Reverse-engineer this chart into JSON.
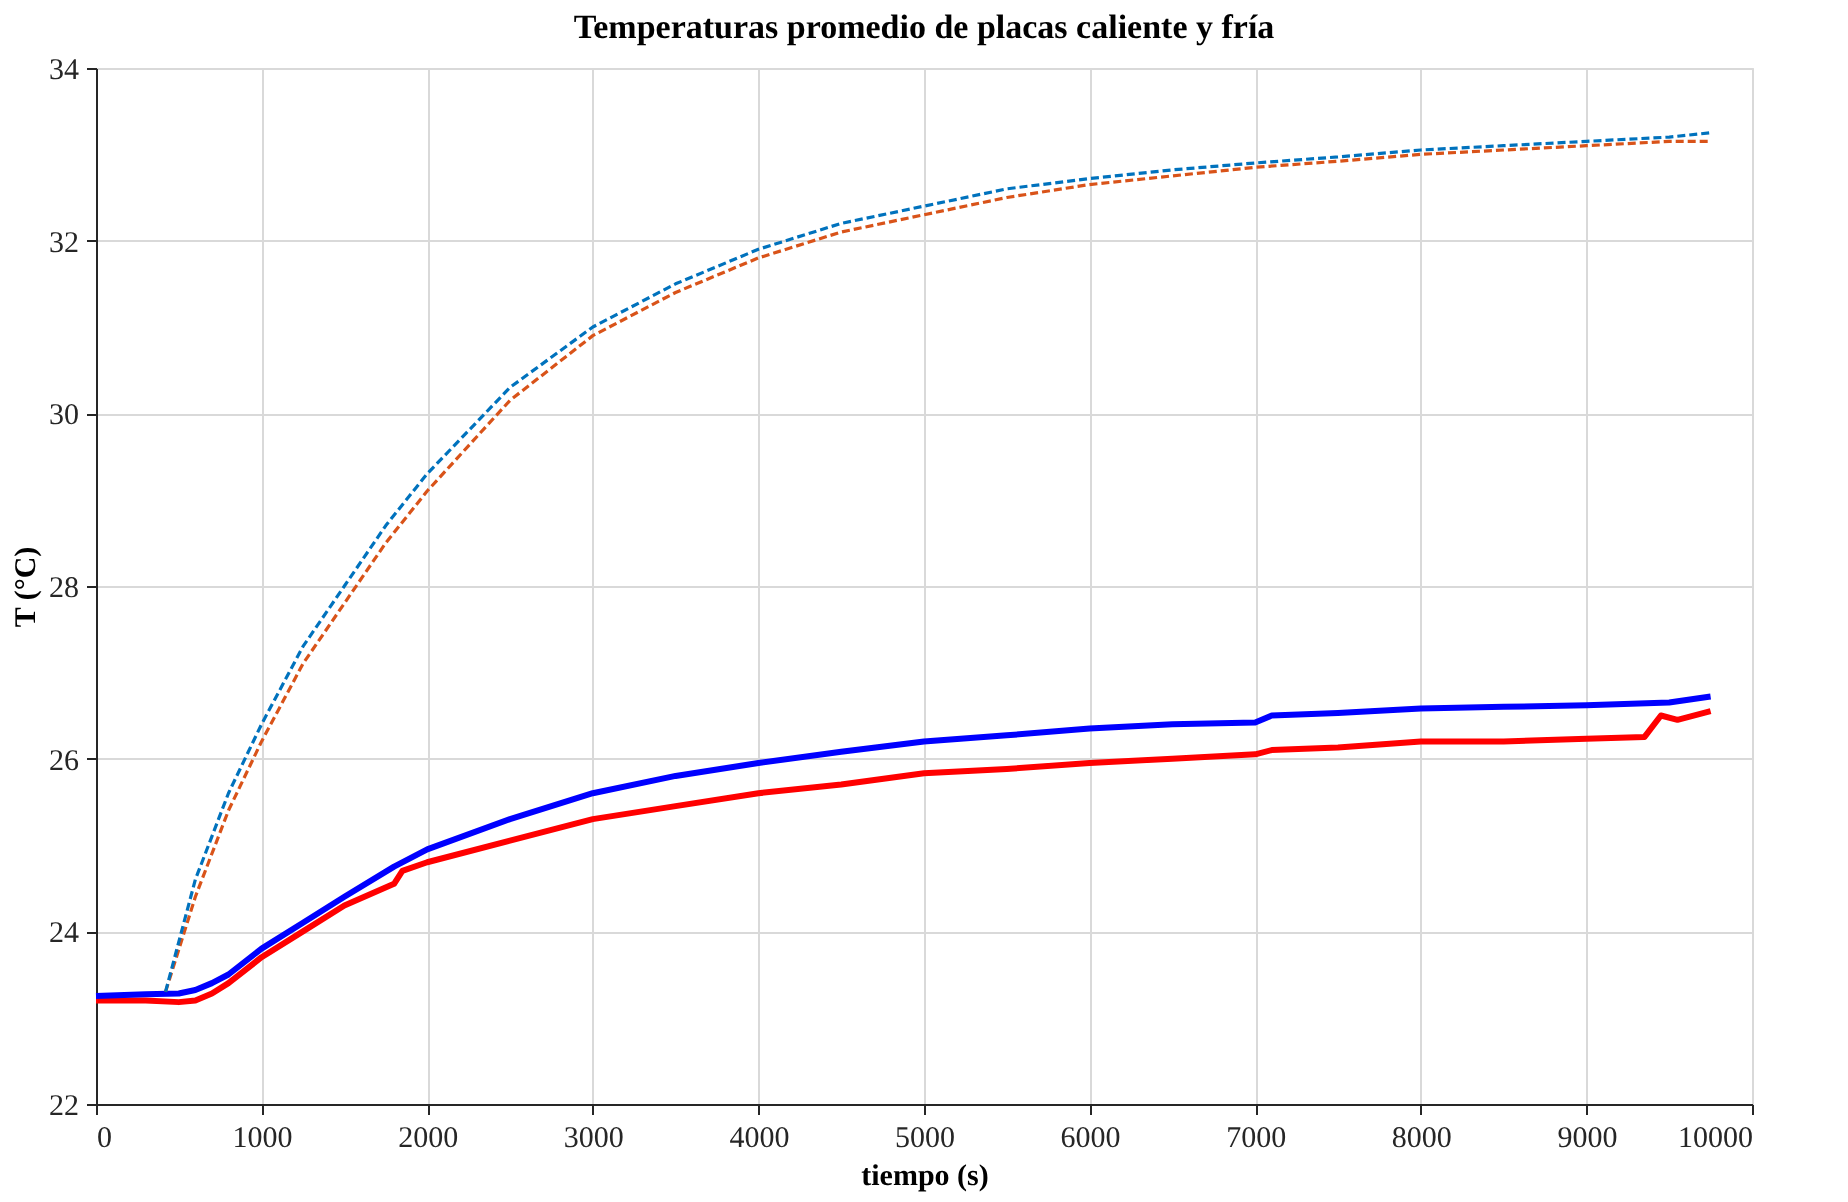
{
  "chart_data": {
    "type": "line",
    "title": "Temperaturas promedio de placas caliente y fría",
    "xlabel": "tiempo (s)",
    "ylabel": "T (°C)",
    "xlim": [
      0,
      10000
    ],
    "xticks": [
      0,
      1000,
      2000,
      3000,
      4000,
      5000,
      6000,
      7000,
      8000,
      9000,
      10000
    ],
    "ylim": [
      22,
      34
    ],
    "yticks": [
      22,
      24,
      26,
      28,
      30,
      32,
      34
    ],
    "grid": true,
    "marker": "none",
    "series": [
      {
        "color": "#0072bd",
        "line_style": "dashed",
        "x": [
          420,
          600,
          800,
          1000,
          1250,
          1500,
          1750,
          2000,
          2500,
          3000,
          3500,
          4000,
          4500,
          5000,
          5500,
          6000,
          6500,
          7000,
          7500,
          8000,
          8500,
          9000,
          9500,
          9750
        ],
        "values": [
          23.3,
          24.6,
          25.6,
          26.4,
          27.3,
          28.0,
          28.7,
          29.3,
          30.3,
          31.0,
          31.5,
          31.9,
          32.2,
          32.4,
          32.6,
          32.72,
          32.82,
          32.9,
          32.97,
          33.05,
          33.1,
          33.15,
          33.2,
          33.25
        ]
      },
      {
        "color": "#d95319",
        "line_style": "dashed",
        "x": [
          420,
          600,
          800,
          1000,
          1250,
          1500,
          1750,
          2000,
          2500,
          3000,
          3500,
          4000,
          4500,
          5000,
          5500,
          6000,
          6500,
          7000,
          7500,
          8000,
          8500,
          9000,
          9500,
          9750
        ],
        "values": [
          23.3,
          24.4,
          25.4,
          26.2,
          27.1,
          27.8,
          28.5,
          29.1,
          30.15,
          30.9,
          31.4,
          31.8,
          32.1,
          32.3,
          32.5,
          32.65,
          32.75,
          32.85,
          32.92,
          33.0,
          33.05,
          33.1,
          33.15,
          33.15
        ]
      },
      {
        "color": "#0000ff",
        "line_style": "solid",
        "x": [
          0,
          300,
          500,
          600,
          700,
          800,
          1000,
          1250,
          1500,
          1800,
          2000,
          2500,
          3000,
          3500,
          4000,
          4500,
          5000,
          5500,
          6000,
          6500,
          7000,
          7100,
          7500,
          8000,
          8500,
          9000,
          9500,
          9750
        ],
        "values": [
          23.25,
          23.27,
          23.28,
          23.32,
          23.4,
          23.5,
          23.8,
          24.1,
          24.4,
          24.75,
          24.95,
          25.3,
          25.6,
          25.8,
          25.95,
          26.08,
          26.2,
          26.27,
          26.35,
          26.4,
          26.42,
          26.5,
          26.53,
          26.58,
          26.6,
          26.62,
          26.65,
          26.72
        ]
      },
      {
        "color": "#ff0000",
        "line_style": "solid",
        "x": [
          0,
          300,
          500,
          600,
          700,
          800,
          1000,
          1250,
          1500,
          1800,
          1850,
          2000,
          2500,
          3000,
          3500,
          4000,
          4500,
          5000,
          5500,
          6000,
          6500,
          7000,
          7100,
          7500,
          8000,
          8500,
          9000,
          9350,
          9450,
          9550,
          9750
        ],
        "values": [
          23.2,
          23.2,
          23.18,
          23.2,
          23.28,
          23.4,
          23.7,
          24.0,
          24.3,
          24.55,
          24.7,
          24.8,
          25.05,
          25.3,
          25.45,
          25.6,
          25.7,
          25.83,
          25.88,
          25.95,
          26.0,
          26.05,
          26.1,
          26.13,
          26.2,
          26.2,
          26.23,
          26.25,
          26.5,
          26.45,
          26.55
        ]
      }
    ]
  }
}
